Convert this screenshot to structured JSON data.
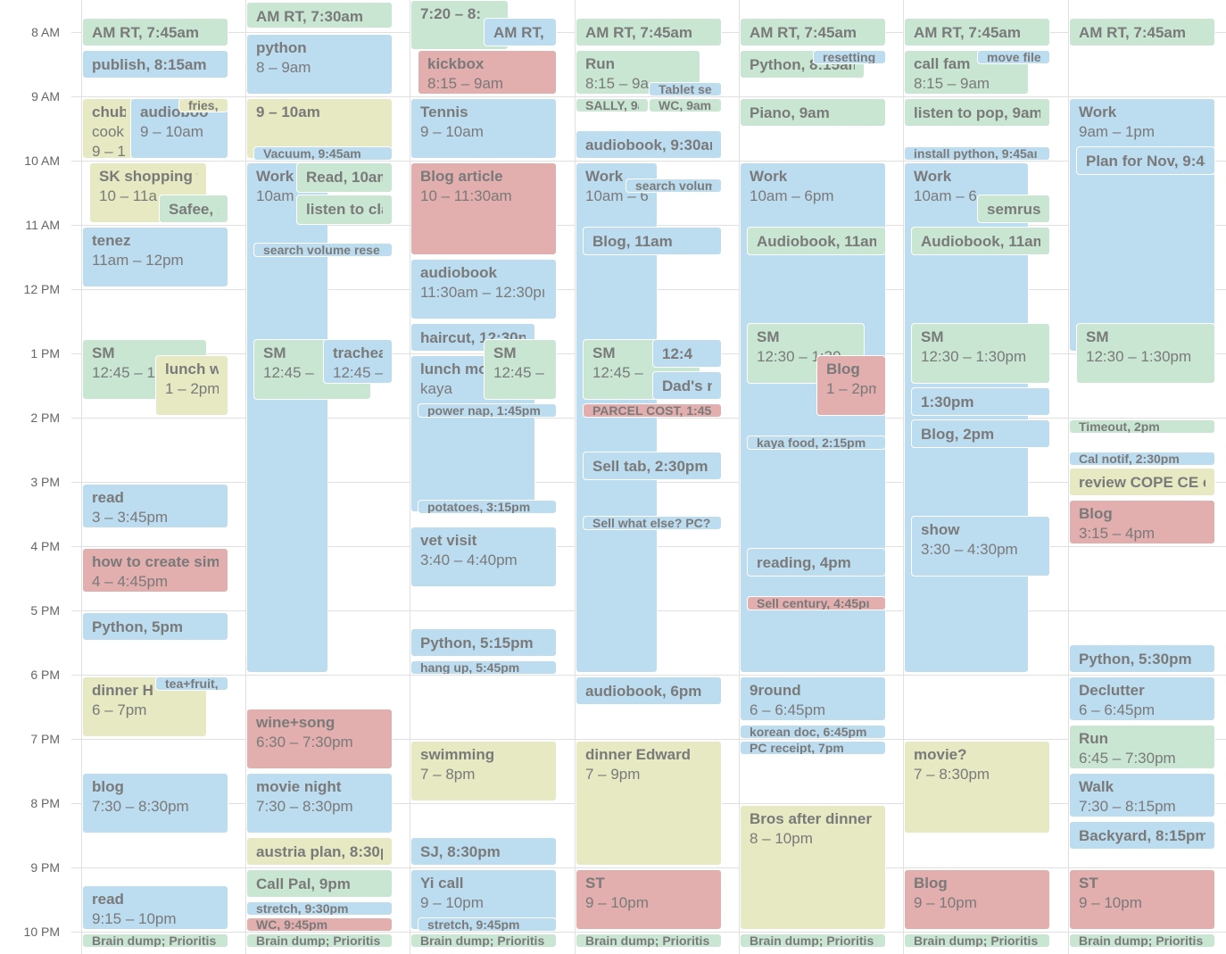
{
  "time_labels": [
    "8 AM",
    "9 AM",
    "10 AM",
    "11 AM",
    "12 PM",
    "1 PM",
    "2 PM",
    "3 PM",
    "4 PM",
    "5 PM",
    "6 PM",
    "7 PM",
    "8 PM",
    "9 PM",
    "10 PM"
  ],
  "days": [
    {
      "events": [
        {
          "lines": [
            "AM RT, 7:45am"
          ],
          "color": "#c8e6d1"
        },
        {
          "lines": [
            "publish, 8:15am"
          ],
          "color": "#bcdcf0"
        },
        {
          "lines": [
            "chub",
            "cook",
            "9 – 1"
          ],
          "color": "#e6e9c1"
        },
        {
          "lines": [
            "audioboo",
            "9 – 10am"
          ],
          "color": "#bcdcf0"
        },
        {
          "lines": [
            "fries,"
          ],
          "color": "#e6e9c1"
        },
        {
          "lines": [
            "SK shopping w",
            "10 – 11a"
          ],
          "color": "#e6e9c1"
        },
        {
          "lines": [
            "Safee, 1"
          ],
          "color": "#c8e6d1"
        },
        {
          "lines": [
            "tenez",
            "11am – 12pm"
          ],
          "color": "#bcdcf0"
        },
        {
          "lines": [
            "SM",
            "12:45 – 1"
          ],
          "color": "#c8e6d1"
        },
        {
          "lines": [
            "lunch wit",
            "1 – 2pm"
          ],
          "color": "#e6e9c1"
        },
        {
          "lines": [
            "read",
            "3 – 3:45pm"
          ],
          "color": "#bcdcf0"
        },
        {
          "lines": [
            "how to create simp",
            "4 – 4:45pm"
          ],
          "color": "#e2aeae"
        },
        {
          "lines": [
            "Python, 5pm"
          ],
          "color": "#bcdcf0"
        },
        {
          "lines": [
            "dinner H",
            "6 – 7pm"
          ],
          "color": "#e6e9c1"
        },
        {
          "lines": [
            "tea+fruit,"
          ],
          "color": "#bcdcf0"
        },
        {
          "lines": [
            "blog",
            "7:30 – 8:30pm"
          ],
          "color": "#bcdcf0"
        },
        {
          "lines": [
            "read",
            "9:15 – 10pm"
          ],
          "color": "#bcdcf0"
        },
        {
          "lines": [
            "Brain dump; Prioritis"
          ],
          "color": "#c8e6d1"
        }
      ]
    },
    {
      "events": [
        {
          "lines": [
            "AM RT, 7:30am"
          ],
          "color": "#c8e6d1"
        },
        {
          "lines": [
            "python",
            "8 – 9am"
          ],
          "color": "#bcdcf0"
        },
        {
          "lines": [
            "9 – 10am"
          ],
          "color": "#e6e9c1"
        },
        {
          "lines": [
            "Vacuum, 9:45am"
          ],
          "color": "#bcdcf0"
        },
        {
          "lines": [
            "Work",
            "10am"
          ],
          "color": "#bcdcf0"
        },
        {
          "lines": [
            "Read, 10am"
          ],
          "color": "#c8e6d1"
        },
        {
          "lines": [
            "listen to clas"
          ],
          "color": "#c8e6d1"
        },
        {
          "lines": [
            "search volume rese"
          ],
          "color": "#bcdcf0"
        },
        {
          "lines": [
            "SM",
            "12:45 –"
          ],
          "color": "#c8e6d1"
        },
        {
          "lines": [
            "tracheal",
            "12:45 –"
          ],
          "color": "#bcdcf0"
        },
        {
          "lines": [
            "wine+song",
            "6:30 – 7:30pm"
          ],
          "color": "#e2aeae"
        },
        {
          "lines": [
            "movie night",
            "7:30 – 8:30pm"
          ],
          "color": "#bcdcf0"
        },
        {
          "lines": [
            "austria plan, 8:30pı"
          ],
          "color": "#e6e9c1"
        },
        {
          "lines": [
            "Call Pal, 9pm"
          ],
          "color": "#c8e6d1"
        },
        {
          "lines": [
            "stretch, 9:30pm"
          ],
          "color": "#bcdcf0"
        },
        {
          "lines": [
            "WC, 9:45pm"
          ],
          "color": "#e2aeae"
        },
        {
          "lines": [
            "Brain dump; Prioritis"
          ],
          "color": "#c8e6d1"
        }
      ]
    },
    {
      "events": [
        {
          "lines": [
            "7:20 – 8:"
          ],
          "color": "#c8e6d1"
        },
        {
          "lines": [
            "AM RT, 7"
          ],
          "color": "#bcdcf0"
        },
        {
          "lines": [
            "kickbox",
            "8:15 – 9am"
          ],
          "color": "#e2aeae"
        },
        {
          "lines": [
            "Tennis",
            "9 – 10am"
          ],
          "color": "#bcdcf0"
        },
        {
          "lines": [
            "Blog article",
            "10 – 11:30am"
          ],
          "color": "#e2aeae"
        },
        {
          "lines": [
            "audiobook",
            "11:30am – 12:30pı"
          ],
          "color": "#bcdcf0"
        },
        {
          "lines": [
            "haircut, 12:30pı"
          ],
          "color": "#bcdcf0"
        },
        {
          "lines": [
            "lunch mo",
            "kaya"
          ],
          "color": "#bcdcf0"
        },
        {
          "lines": [
            "SM",
            "12:45 – 1"
          ],
          "color": "#c8e6d1"
        },
        {
          "lines": [
            "power nap, 1:45pm"
          ],
          "color": "#bcdcf0"
        },
        {
          "lines": [
            "potatoes, 3:15pm"
          ],
          "color": "#bcdcf0"
        },
        {
          "lines": [
            "vet visit",
            "3:40 – 4:40pm"
          ],
          "color": "#bcdcf0"
        },
        {
          "lines": [
            "Python, 5:15pm"
          ],
          "color": "#bcdcf0"
        },
        {
          "lines": [
            "hang up, 5:45pm"
          ],
          "color": "#bcdcf0"
        },
        {
          "lines": [
            "swimming",
            "7 – 8pm"
          ],
          "color": "#e6e9c1"
        },
        {
          "lines": [
            "SJ, 8:30pm"
          ],
          "color": "#bcdcf0"
        },
        {
          "lines": [
            "Yi call",
            "9 – 10pm"
          ],
          "color": "#bcdcf0"
        },
        {
          "lines": [
            "stretch, 9:45pm"
          ],
          "color": "#bcdcf0"
        },
        {
          "lines": [
            "Brain dump; Prioritis"
          ],
          "color": "#c8e6d1"
        }
      ]
    },
    {
      "events": [
        {
          "lines": [
            "AM RT, 7:45am"
          ],
          "color": "#c8e6d1"
        },
        {
          "lines": [
            "Run",
            "8:15 – 9a"
          ],
          "color": "#c8e6d1"
        },
        {
          "lines": [
            "Tablet sel"
          ],
          "color": "#bcdcf0"
        },
        {
          "lines": [
            "SALLY, 9a"
          ],
          "color": "#c8e6d1"
        },
        {
          "lines": [
            "WC, 9am"
          ],
          "color": "#c8e6d1"
        },
        {
          "lines": [
            "audiobook, 9:30am"
          ],
          "color": "#bcdcf0"
        },
        {
          "lines": [
            "Work",
            "10am – 6p"
          ],
          "color": "#bcdcf0"
        },
        {
          "lines": [
            "search volum"
          ],
          "color": "#bcdcf0"
        },
        {
          "lines": [
            "Blog, 11am"
          ],
          "color": "#bcdcf0"
        },
        {
          "lines": [
            "SM",
            "12:45 –"
          ],
          "color": "#c8e6d1"
        },
        {
          "lines": [
            "12:4"
          ],
          "color": "#bcdcf0"
        },
        {
          "lines": [
            "Dad's m"
          ],
          "color": "#bcdcf0"
        },
        {
          "lines": [
            "PARCEL COST, 1:45"
          ],
          "color": "#e2aeae"
        },
        {
          "lines": [
            "Sell tab, 2:30pm"
          ],
          "color": "#bcdcf0"
        },
        {
          "lines": [
            "Sell what else? PC?"
          ],
          "color": "#bcdcf0"
        },
        {
          "lines": [
            "audiobook, 6pm"
          ],
          "color": "#bcdcf0"
        },
        {
          "lines": [
            "dinner Edward",
            "7 – 9pm"
          ],
          "color": "#e6e9c1"
        },
        {
          "lines": [
            "ST",
            "9 – 10pm"
          ],
          "color": "#e2aeae"
        },
        {
          "lines": [
            "Brain dump; Prioritis"
          ],
          "color": "#c8e6d1"
        }
      ]
    },
    {
      "events": [
        {
          "lines": [
            "AM RT, 7:45am"
          ],
          "color": "#c8e6d1"
        },
        {
          "lines": [
            "Python, 8:15am"
          ],
          "color": "#c8e6d1"
        },
        {
          "lines": [
            "resetting"
          ],
          "color": "#bcdcf0"
        },
        {
          "lines": [
            "Piano, 9am"
          ],
          "color": "#c8e6d1"
        },
        {
          "lines": [
            "Work",
            "10am – 6pm"
          ],
          "color": "#bcdcf0"
        },
        {
          "lines": [
            "Audiobook, 11am"
          ],
          "color": "#c8e6d1"
        },
        {
          "lines": [
            "SM",
            "12:30 – 1:30"
          ],
          "color": "#c8e6d1"
        },
        {
          "lines": [
            "Blog",
            "1 – 2pm"
          ],
          "color": "#e2aeae"
        },
        {
          "lines": [
            "kaya food, 2:15pm"
          ],
          "color": "#bcdcf0"
        },
        {
          "lines": [
            "reading, 4pm"
          ],
          "color": "#bcdcf0"
        },
        {
          "lines": [
            "Sell century, 4:45pı"
          ],
          "color": "#e2aeae"
        },
        {
          "lines": [
            "9round",
            "6 – 6:45pm"
          ],
          "color": "#bcdcf0"
        },
        {
          "lines": [
            "korean doc, 6:45pm"
          ],
          "color": "#bcdcf0"
        },
        {
          "lines": [
            "PC receipt, 7pm"
          ],
          "color": "#bcdcf0"
        },
        {
          "lines": [
            "Bros after dinner",
            "8 – 10pm"
          ],
          "color": "#e6e9c1"
        },
        {
          "lines": [
            "Brain dump; Prioritis"
          ],
          "color": "#c8e6d1"
        }
      ]
    },
    {
      "events": [
        {
          "lines": [
            "AM RT, 7:45am"
          ],
          "color": "#c8e6d1"
        },
        {
          "lines": [
            "call fam",
            "8:15 – 9am"
          ],
          "color": "#c8e6d1"
        },
        {
          "lines": [
            "move file"
          ],
          "color": "#bcdcf0"
        },
        {
          "lines": [
            "listen to pop, 9am"
          ],
          "color": "#c8e6d1"
        },
        {
          "lines": [
            "install python, 9:45aı"
          ],
          "color": "#bcdcf0"
        },
        {
          "lines": [
            "Work",
            "10am – 6"
          ],
          "color": "#bcdcf0"
        },
        {
          "lines": [
            "semrush"
          ],
          "color": "#c8e6d1"
        },
        {
          "lines": [
            "Audiobook, 11am"
          ],
          "color": "#c8e6d1"
        },
        {
          "lines": [
            "SM",
            "12:30 – 1:30pm"
          ],
          "color": "#c8e6d1"
        },
        {
          "lines": [
            "1:30pm"
          ],
          "color": "#bcdcf0"
        },
        {
          "lines": [
            "Blog, 2pm"
          ],
          "color": "#bcdcf0"
        },
        {
          "lines": [
            "show",
            "3:30 – 4:30pm"
          ],
          "color": "#bcdcf0"
        },
        {
          "lines": [
            "movie?",
            "7 – 8:30pm"
          ],
          "color": "#e6e9c1"
        },
        {
          "lines": [
            "Blog",
            "9 – 10pm"
          ],
          "color": "#e2aeae"
        },
        {
          "lines": [
            "Brain dump; Prioritis"
          ],
          "color": "#c8e6d1"
        }
      ]
    },
    {
      "events": [
        {
          "lines": [
            "AM RT, 7:45am"
          ],
          "color": "#c8e6d1"
        },
        {
          "lines": [
            "Work",
            "9am – 1pm"
          ],
          "color": "#bcdcf0"
        },
        {
          "lines": [
            "Plan for Nov, 9:45"
          ],
          "color": "#bcdcf0"
        },
        {
          "lines": [
            "SM",
            "12:30 – 1:30pm"
          ],
          "color": "#c8e6d1"
        },
        {
          "lines": [
            "Timeout, 2pm"
          ],
          "color": "#c8e6d1"
        },
        {
          "lines": [
            "Cal notif, 2:30pm"
          ],
          "color": "#bcdcf0"
        },
        {
          "lines": [
            "review COPE CE co"
          ],
          "color": "#e6e9c1"
        },
        {
          "lines": [
            "Blog",
            "3:15 – 4pm"
          ],
          "color": "#e2aeae"
        },
        {
          "lines": [
            "Python, 5:30pm"
          ],
          "color": "#bcdcf0"
        },
        {
          "lines": [
            "Declutter",
            "6 – 6:45pm"
          ],
          "color": "#bcdcf0"
        },
        {
          "lines": [
            "Run",
            "6:45 – 7:30pm"
          ],
          "color": "#c8e6d1"
        },
        {
          "lines": [
            "Walk",
            "7:30 – 8:15pm"
          ],
          "color": "#bcdcf0"
        },
        {
          "lines": [
            "Backyard, 8:15pm"
          ],
          "color": "#bcdcf0"
        },
        {
          "lines": [
            "ST",
            "9 – 10pm"
          ],
          "color": "#e2aeae"
        },
        {
          "lines": [
            "Brain dump; Prioritis"
          ],
          "color": "#c8e6d1"
        }
      ]
    }
  ]
}
